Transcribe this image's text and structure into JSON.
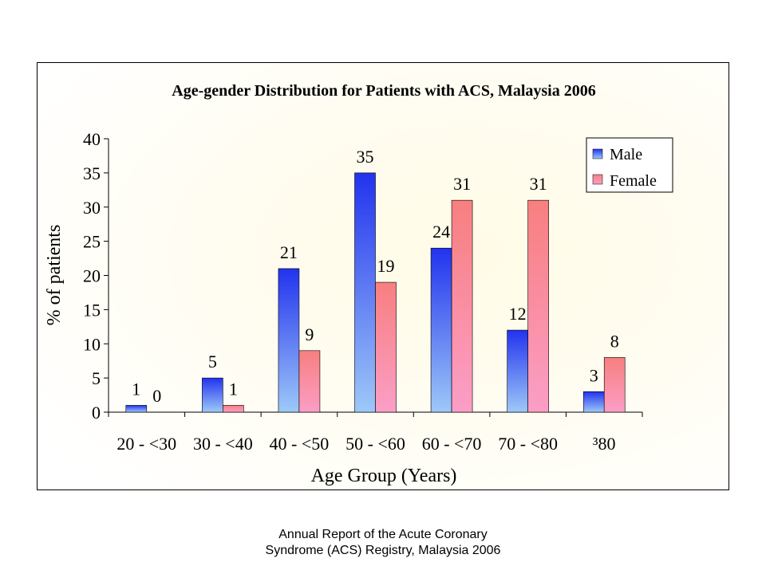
{
  "chart_data": {
    "type": "bar",
    "title": "Age-gender Distribution for Patients with ACS, Malaysia 2006",
    "xlabel": "Age Group (Years)",
    "ylabel": "% of patients",
    "categories": [
      "20 - <30",
      "30 - <40",
      "40 - <50",
      "50 - <60",
      "60 - <70",
      "70 - <80",
      "³80"
    ],
    "series": [
      {
        "name": "Male",
        "values": [
          1,
          5,
          21,
          35,
          24,
          12,
          3
        ],
        "color": "#2233ee",
        "color_light": "#9ec8f8"
      },
      {
        "name": "Female",
        "values": [
          0,
          1,
          9,
          19,
          31,
          31,
          8
        ],
        "color": "#f77f7f",
        "color_light": "#fb9ec6"
      }
    ],
    "ylim": [
      0,
      40
    ],
    "yticks": [
      0,
      5,
      10,
      15,
      20,
      25,
      30,
      35,
      40
    ],
    "legend_position": "top-right",
    "grid": false
  },
  "caption": {
    "line1": "Annual Report of the Acute Coronary",
    "line2": "Syndrome (ACS) Registry, Malaysia 2006"
  }
}
